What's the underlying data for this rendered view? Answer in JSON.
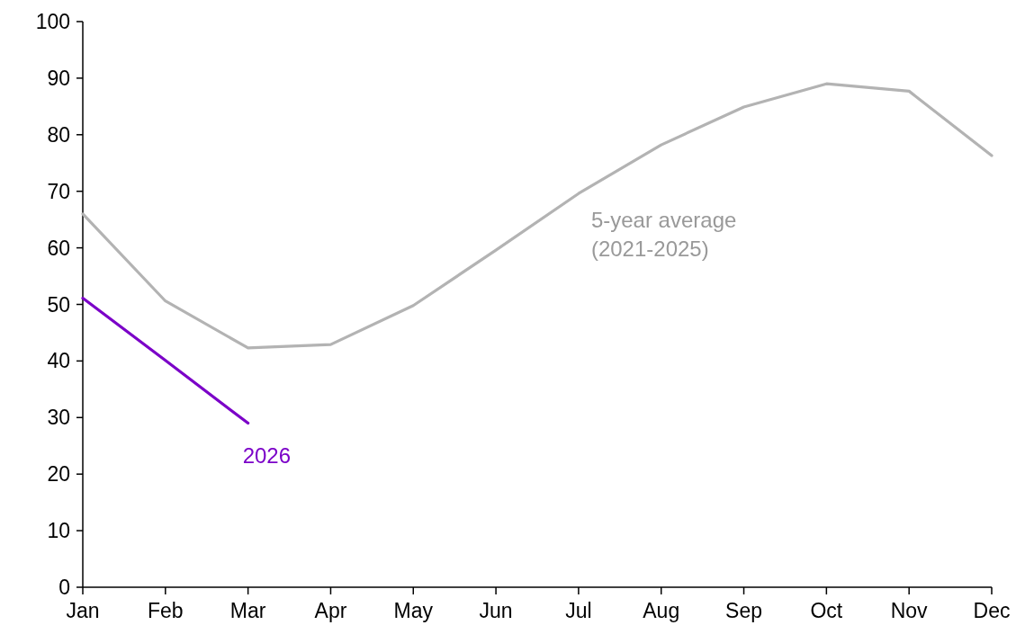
{
  "chart_data": {
    "type": "line",
    "categories": [
      "Jan",
      "Feb",
      "Mar",
      "Apr",
      "May",
      "Jun",
      "Jul",
      "Aug",
      "Sep",
      "Oct",
      "Nov",
      "Dec"
    ],
    "series": [
      {
        "name": "5-year average\n(2021-2025)",
        "color": "#b3b3b3",
        "values": [
          66,
          50.6,
          42.3,
          42.9,
          49.8,
          59.6,
          69.6,
          78.2,
          84.9,
          89,
          87.7,
          76.3
        ]
      },
      {
        "name": "2026",
        "color": "#7b00c8",
        "values": [
          51.1,
          40.1,
          29,
          null,
          null,
          null,
          null,
          null,
          null,
          null,
          null,
          null
        ]
      }
    ],
    "ylim": [
      0,
      100
    ],
    "yticks": [
      0,
      10,
      20,
      30,
      40,
      50,
      60,
      70,
      80,
      90,
      100
    ],
    "grid": false,
    "marker": "none",
    "line_style": "solid"
  }
}
